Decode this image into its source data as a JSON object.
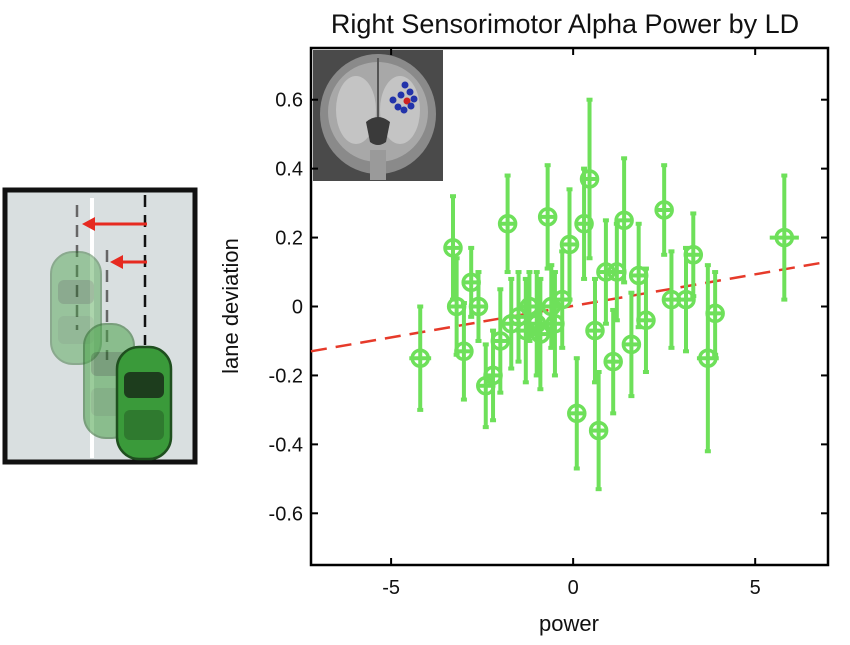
{
  "chart_data": {
    "type": "scatter",
    "title": "Right Sensorimotor Alpha Power by LD",
    "xlabel": "power",
    "ylabel": "lane deviation",
    "xlim": [
      -7.2,
      7
    ],
    "ylim": [
      -0.75,
      0.75
    ],
    "xticks": [
      -5,
      0,
      5
    ],
    "xtick_labels": [
      "-5",
      "0",
      "5"
    ],
    "yticks": [
      -0.6,
      -0.4,
      -0.2,
      0,
      0.2,
      0.4,
      0.6
    ],
    "ytick_labels": [
      "-0.6",
      "-0.4",
      "-0.2",
      "0",
      "0.2",
      "0.4",
      "0.6"
    ],
    "grid": false,
    "legend": "none",
    "colors": {
      "points": "#6ee05a",
      "trend": "#e63a2a",
      "frame": "#000000"
    },
    "trend_line": {
      "style": "dashed",
      "x": [
        -7.2,
        7
      ],
      "y": [
        -0.13,
        0.13
      ]
    },
    "points": [
      {
        "x": -4.2,
        "y": -0.15,
        "y_err": 0.15,
        "x_err": 0.3
      },
      {
        "x": -3.3,
        "y": 0.17,
        "y_err": 0.15,
        "x_err": 0.2
      },
      {
        "x": -3.2,
        "y": 0.0,
        "y_err": 0.14,
        "x_err": 0.25
      },
      {
        "x": -3.0,
        "y": -0.13,
        "y_err": 0.14,
        "x_err": 0.2
      },
      {
        "x": -2.8,
        "y": 0.07,
        "y_err": 0.1,
        "x_err": 0.2
      },
      {
        "x": -2.6,
        "y": 0.0,
        "y_err": 0.1,
        "x_err": 0.2
      },
      {
        "x": -2.4,
        "y": -0.23,
        "y_err": 0.12,
        "x_err": 0.2
      },
      {
        "x": -2.2,
        "y": -0.2,
        "y_err": 0.13,
        "x_err": 0.2
      },
      {
        "x": -2.0,
        "y": -0.1,
        "y_err": 0.15,
        "x_err": 0.2
      },
      {
        "x": -1.8,
        "y": 0.24,
        "y_err": 0.14,
        "x_err": 0.25
      },
      {
        "x": -1.7,
        "y": -0.05,
        "y_err": 0.13,
        "x_err": 0.2
      },
      {
        "x": -1.5,
        "y": -0.03,
        "y_err": 0.13,
        "x_err": 0.2
      },
      {
        "x": -1.3,
        "y": -0.07,
        "y_err": 0.15,
        "x_err": 0.2
      },
      {
        "x": -1.2,
        "y": 0.0,
        "y_err": 0.1,
        "x_err": 0.2
      },
      {
        "x": -1.0,
        "y": -0.05,
        "y_err": 0.15,
        "x_err": 0.2
      },
      {
        "x": -0.9,
        "y": -0.08,
        "y_err": 0.16,
        "x_err": 0.2
      },
      {
        "x": -0.7,
        "y": 0.26,
        "y_err": 0.15,
        "x_err": 0.25
      },
      {
        "x": -0.6,
        "y": 0.0,
        "y_err": 0.12,
        "x_err": 0.2
      },
      {
        "x": -0.5,
        "y": -0.05,
        "y_err": 0.15,
        "x_err": 0.2
      },
      {
        "x": -0.3,
        "y": 0.02,
        "y_err": 0.14,
        "x_err": 0.2
      },
      {
        "x": -0.1,
        "y": 0.18,
        "y_err": 0.16,
        "x_err": 0.2
      },
      {
        "x": 0.1,
        "y": -0.31,
        "y_err": 0.16,
        "x_err": 0.2
      },
      {
        "x": 0.3,
        "y": 0.24,
        "y_err": 0.16,
        "x_err": 0.2
      },
      {
        "x": 0.45,
        "y": 0.37,
        "y_err": 0.23,
        "x_err": 0.2
      },
      {
        "x": 0.6,
        "y": -0.07,
        "y_err": 0.15,
        "x_err": 0.2
      },
      {
        "x": 0.7,
        "y": -0.36,
        "y_err": 0.17,
        "x_err": 0.2
      },
      {
        "x": 0.9,
        "y": 0.1,
        "y_err": 0.15,
        "x_err": 0.2
      },
      {
        "x": 1.1,
        "y": -0.16,
        "y_err": 0.15,
        "x_err": 0.2
      },
      {
        "x": 1.2,
        "y": 0.1,
        "y_err": 0.14,
        "x_err": 0.2
      },
      {
        "x": 1.4,
        "y": 0.25,
        "y_err": 0.18,
        "x_err": 0.2
      },
      {
        "x": 1.6,
        "y": -0.11,
        "y_err": 0.15,
        "x_err": 0.2
      },
      {
        "x": 1.8,
        "y": 0.09,
        "y_err": 0.15,
        "x_err": 0.2
      },
      {
        "x": 2.0,
        "y": -0.04,
        "y_err": 0.15,
        "x_err": 0.2
      },
      {
        "x": 2.5,
        "y": 0.28,
        "y_err": 0.13,
        "x_err": 0.25
      },
      {
        "x": 2.7,
        "y": 0.02,
        "y_err": 0.14,
        "x_err": 0.2
      },
      {
        "x": 3.1,
        "y": 0.02,
        "y_err": 0.15,
        "x_err": 0.2
      },
      {
        "x": 3.3,
        "y": 0.15,
        "y_err": 0.12,
        "x_err": 0.25
      },
      {
        "x": 3.7,
        "y": -0.15,
        "y_err": 0.27,
        "x_err": 0.3
      },
      {
        "x": 3.9,
        "y": -0.02,
        "y_err": 0.12,
        "x_err": 0.25
      },
      {
        "x": 5.8,
        "y": 0.2,
        "y_err": 0.18,
        "x_err": 0.4
      }
    ]
  }
}
